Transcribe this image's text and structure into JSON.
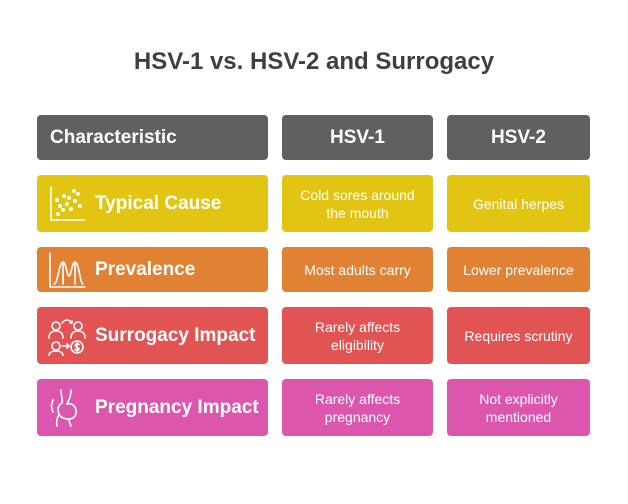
{
  "title": "HSV-1 vs. HSV-2 and Surrogacy",
  "header": {
    "characteristic": "Characteristic",
    "hsv1": "HSV-1",
    "hsv2": "HSV-2"
  },
  "rows": [
    {
      "label": "Typical Cause",
      "icon": "scatter-chart-icon",
      "color": "#e1c512",
      "hsv1": "Cold sores around the mouth",
      "hsv2": "Genital herpes"
    },
    {
      "label": "Prevalence",
      "icon": "distribution-chart-icon",
      "color": "#e18133",
      "hsv1": "Most adults carry",
      "hsv2": "Lower prevalence"
    },
    {
      "label": "Surrogacy Impact",
      "icon": "people-exchange-icon",
      "color": "#e25353",
      "hsv1": "Rarely affects eligibility",
      "hsv2": "Requires scrutiny"
    },
    {
      "label": "Pregnancy Impact",
      "icon": "pregnancy-icon",
      "color": "#dc56ae",
      "hsv1": "Rarely affects pregnancy",
      "hsv2": "Not explicitly mentioned"
    }
  ],
  "colors": {
    "header": "#606060",
    "title": "#3f3f3f"
  }
}
